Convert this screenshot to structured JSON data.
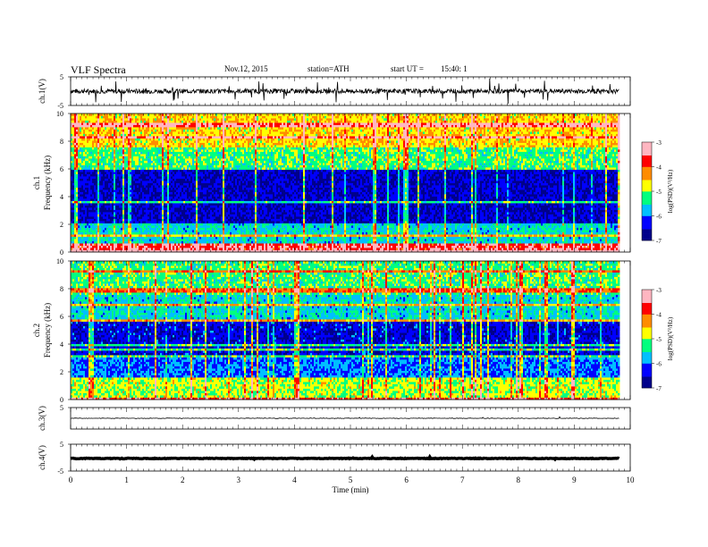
{
  "header": {
    "title": "VLF  Spectra",
    "date": "Nov.12, 2015",
    "station": "station=ATH",
    "start_label": "start  UT  =",
    "start_value": "15:40: 1"
  },
  "colors": {
    "spectrogram_scale": [
      "#00008b",
      "#0000ff",
      "#00bfff",
      "#00ff7f",
      "#ffff00",
      "#ff8c00",
      "#ff0000",
      "#ffb6c1"
    ],
    "trace": "#000000"
  },
  "chart_data": [
    {
      "type": "line",
      "panel": "ch1-waveform",
      "ylabel": "ch.1(V)",
      "ylim": [
        -5,
        5
      ],
      "y_ticks": [
        "5",
        "-5"
      ],
      "series_description": "noisy waveform centred near 0 V with spikes",
      "baseline": 0.0
    },
    {
      "type": "heatmap",
      "panel": "ch1-spectrogram",
      "ylabel": "Frequency  (kHz)",
      "channel_label": "ch.1",
      "ylim": [
        0,
        10
      ],
      "y_ticks": [
        "0",
        "2",
        "4",
        "6",
        "8",
        "10"
      ],
      "colorbar": {
        "label": "log(PSD)(V²/Hz)",
        "ticks": [
          "-3",
          "-4",
          "-5",
          "-6",
          "-7"
        ],
        "range": [
          -7,
          -3
        ]
      },
      "bands_khz": [
        {
          "from": 0,
          "to": 0.6,
          "level": -3.6
        },
        {
          "from": 0.6,
          "to": 2.0,
          "level": -5.6
        },
        {
          "from": 2.0,
          "to": 5.9,
          "level": -6.5
        },
        {
          "from": 5.9,
          "to": 7.5,
          "level": -5.2
        },
        {
          "from": 7.5,
          "to": 10,
          "level": -4.6
        }
      ]
    },
    {
      "type": "heatmap",
      "panel": "ch2-spectrogram",
      "ylabel": "Frequency  (kHz)",
      "channel_label": "ch.2",
      "ylim": [
        0,
        10
      ],
      "y_ticks": [
        "0",
        "2",
        "4",
        "6",
        "8",
        "10"
      ],
      "colorbar": {
        "label": "log(PSD)(V²/Hz)",
        "ticks": [
          "-3",
          "-4",
          "-5",
          "-6",
          "-7"
        ],
        "range": [
          -7,
          -3
        ]
      },
      "bands_khz": [
        {
          "from": 0,
          "to": 1.6,
          "level": -4.9
        },
        {
          "from": 1.6,
          "to": 3.0,
          "level": -6.0
        },
        {
          "from": 3.0,
          "to": 5.5,
          "level": -6.4
        },
        {
          "from": 5.5,
          "to": 7.5,
          "level": -5.6
        },
        {
          "from": 7.5,
          "to": 10,
          "level": -5.2
        }
      ]
    },
    {
      "type": "line",
      "panel": "ch3-waveform",
      "ylabel": "ch.3(V)",
      "ylim": [
        -5,
        5
      ],
      "y_ticks": [
        "5"
      ],
      "baseline": 0.0
    },
    {
      "type": "line",
      "panel": "ch4-waveform",
      "ylabel": "ch.4(V)",
      "ylim": [
        -5,
        5
      ],
      "y_ticks": [
        "5",
        "-5"
      ],
      "baseline": -0.3
    }
  ],
  "x_axis": {
    "label": "Time  (min)",
    "ticks": [
      "0",
      "1",
      "2",
      "3",
      "4",
      "5",
      "6",
      "7",
      "8",
      "9",
      "10"
    ],
    "range": [
      0,
      10
    ],
    "data_end": 9.8
  }
}
